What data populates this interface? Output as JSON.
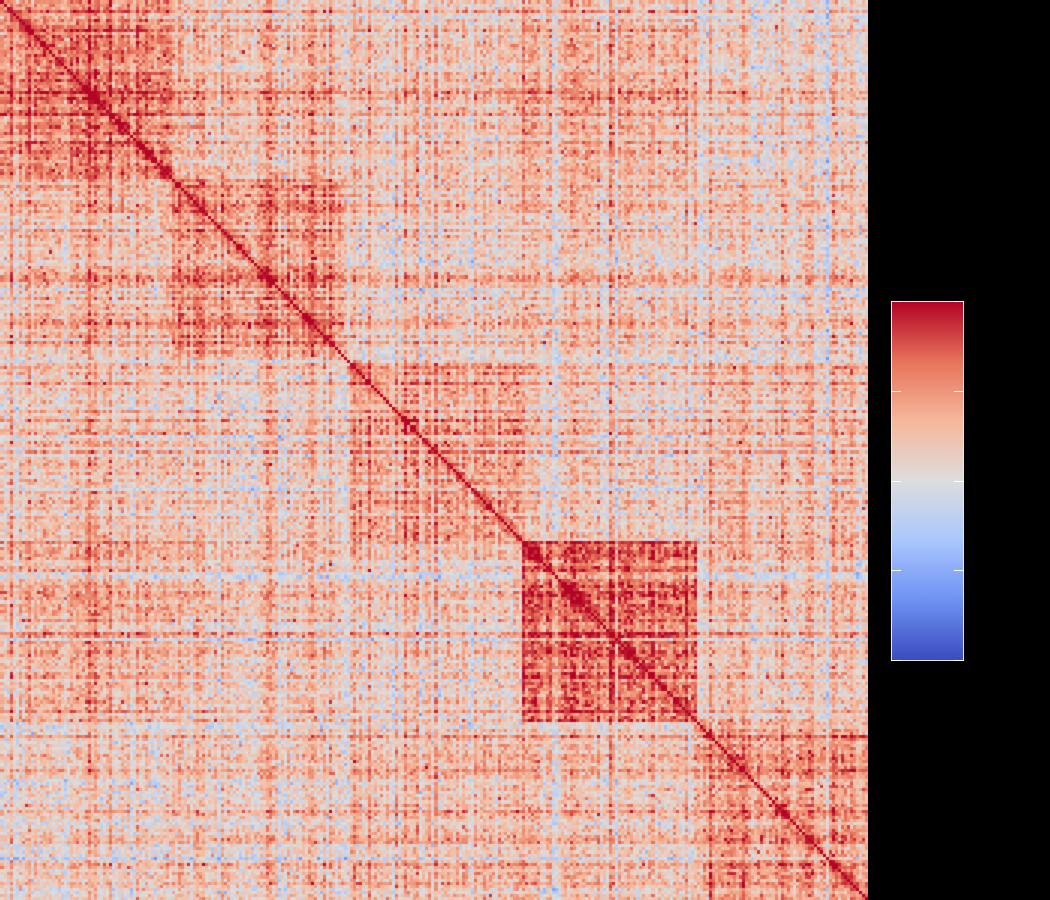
{
  "chart_data": {
    "type": "heatmap",
    "title": "",
    "xlabel": "",
    "ylabel": "",
    "matrix_size": 288,
    "diagonal_value": 1.0,
    "clusters": [
      {
        "start": 0,
        "end": 57,
        "intra_strength": 0.55
      },
      {
        "start": 57,
        "end": 115,
        "intra_strength": 0.48
      },
      {
        "start": 115,
        "end": 173,
        "intra_strength": 0.42
      },
      {
        "start": 173,
        "end": 231,
        "intra_strength": 0.6
      },
      {
        "start": 231,
        "end": 288,
        "intra_strength": 0.52
      }
    ],
    "inter_cluster_strength": [
      [
        1.0,
        0.28,
        0.22,
        0.3,
        0.18
      ],
      [
        0.28,
        1.0,
        0.18,
        0.2,
        0.22
      ],
      [
        0.22,
        0.18,
        1.0,
        0.16,
        0.3
      ],
      [
        0.3,
        0.2,
        0.16,
        1.0,
        0.25
      ],
      [
        0.18,
        0.22,
        0.3,
        0.25,
        1.0
      ]
    ],
    "value_range": [
      -1.0,
      1.0
    ],
    "colormap": "coolwarm",
    "colormap_stops": [
      "#3b4cc0",
      "#6f91f3",
      "#aac7fd",
      "#dddddd",
      "#f6b89c",
      "#e7745b",
      "#b40426"
    ],
    "colorbar": {
      "visible": true,
      "placement": "right",
      "ticks": [
        -1.0,
        -0.5,
        0.0,
        0.5,
        1.0
      ],
      "tick_labels": []
    },
    "grid": false,
    "background": "#000000"
  }
}
